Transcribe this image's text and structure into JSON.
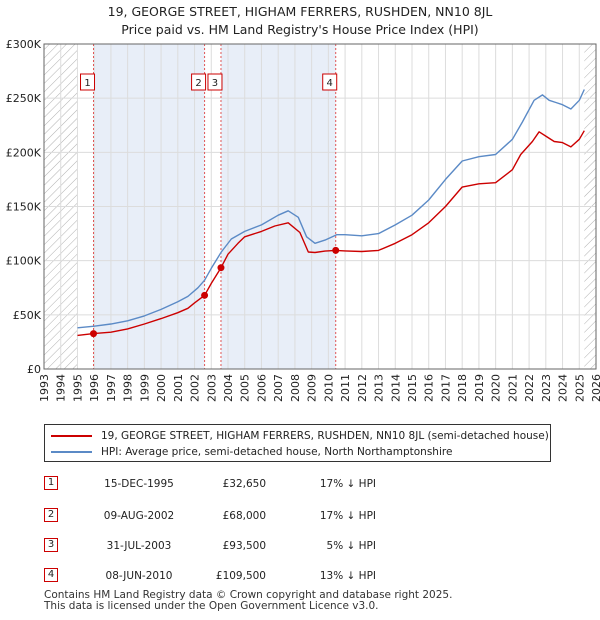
{
  "title_line1": "19, GEORGE STREET, HIGHAM FERRERS, RUSHDEN, NN10 8JL",
  "title_line2": "Price paid vs. HM Land Registry's House Price Index (HPI)",
  "chart_data": {
    "type": "line",
    "title": "19, GEORGE STREET, HIGHAM FERRERS, RUSHDEN, NN10 8JL — Price paid vs. HM Land Registry's House Price Index (HPI)",
    "xlim": [
      1993,
      2026
    ],
    "ylim": [
      0,
      300000
    ],
    "x_ticks": [
      1993,
      1994,
      1995,
      1996,
      1997,
      1998,
      1999,
      2000,
      2001,
      2002,
      2003,
      2004,
      2005,
      2006,
      2007,
      2008,
      2009,
      2010,
      2011,
      2012,
      2013,
      2014,
      2015,
      2016,
      2017,
      2018,
      2019,
      2020,
      2021,
      2022,
      2023,
      2024,
      2025,
      2026
    ],
    "y_ticks": [
      0,
      50000,
      100000,
      150000,
      200000,
      250000,
      300000
    ],
    "y_tick_labels": [
      "£0",
      "£50K",
      "£100K",
      "£150K",
      "£200K",
      "£250K",
      "£300K"
    ],
    "data_range": [
      1995.0,
      2025.3
    ],
    "grid": true,
    "colors": {
      "price": "#cc0000",
      "hpi": "#5b8ac6",
      "shade": "#e8eef8",
      "hatch": "#aaaaaa",
      "marker_line": "#e05555"
    },
    "series": [
      {
        "name": "19, GEORGE STREET, HIGHAM FERRERS, RUSHDEN, NN10 8JL (semi-detached house)",
        "key": "price",
        "x": [
          1995.0,
          1995.96,
          1997,
          1998,
          1999,
          2000,
          2001,
          2001.6,
          2002.0,
          2002.6,
          2003.0,
          2003.58,
          2004.0,
          2004.6,
          2005,
          2006,
          2006.8,
          2007.6,
          2008.3,
          2008.8,
          2009.2,
          2009.8,
          2010.44,
          2011,
          2012,
          2013,
          2014,
          2015,
          2016,
          2017,
          2018,
          2019,
          2020,
          2021,
          2021.5,
          2022.2,
          2022.6,
          2023,
          2023.5,
          2024,
          2024.5,
          2025,
          2025.3
        ],
        "y": [
          31000,
          32650,
          34000,
          37000,
          41500,
          46500,
          52000,
          56000,
          61000,
          68000,
          79000,
          93500,
          106000,
          116000,
          122000,
          127000,
          132000,
          135000,
          126000,
          108000,
          107500,
          108800,
          109500,
          109000,
          108500,
          109500,
          116000,
          124000,
          135000,
          150000,
          168000,
          171000,
          172000,
          184000,
          198000,
          210000,
          219000,
          215000,
          210000,
          209000,
          205000,
          212000,
          220000
        ]
      },
      {
        "name": "HPI: Average price, semi-detached house, North Northamptonshire",
        "key": "hpi",
        "x": [
          1995.0,
          1996,
          1997,
          1998,
          1999,
          2000,
          2001,
          2001.6,
          2002.2,
          2002.6,
          2003.0,
          2003.6,
          2004.2,
          2005,
          2006,
          2007,
          2007.6,
          2008.2,
          2008.7,
          2009.2,
          2009.8,
          2010.5,
          2011,
          2012,
          2013,
          2014,
          2015,
          2016,
          2017,
          2018,
          2019,
          2020,
          2021,
          2021.6,
          2022.3,
          2022.8,
          2023.2,
          2023.6,
          2024,
          2024.5,
          2025,
          2025.3
        ],
        "y": [
          38000,
          39500,
          41500,
          44500,
          49000,
          55000,
          62000,
          67000,
          75000,
          82000,
          93000,
          108000,
          120000,
          127000,
          133000,
          142000,
          146000,
          140000,
          122000,
          116000,
          119000,
          124000,
          124000,
          123000,
          125000,
          133000,
          142000,
          156000,
          175000,
          192000,
          196000,
          198000,
          212000,
          228000,
          248000,
          253000,
          248000,
          246000,
          244000,
          240000,
          248000,
          258000
        ]
      }
    ],
    "annotations": [
      {
        "label": "1",
        "x": 1995.96,
        "y": 32650,
        "date": "15-DEC-1995",
        "price": "£32,650",
        "hpi": "17% ↓ HPI"
      },
      {
        "label": "2",
        "x": 2002.6,
        "y": 68000,
        "date": "09-AUG-2002",
        "price": "£68,000",
        "hpi": "17% ↓ HPI"
      },
      {
        "label": "3",
        "x": 2003.58,
        "y": 93500,
        "date": "31-JUL-2003",
        "price": "£93,500",
        "hpi": "5% ↓ HPI"
      },
      {
        "label": "4",
        "x": 2010.44,
        "y": 109500,
        "date": "08-JUN-2010",
        "price": "£109,500",
        "hpi": "13% ↓ HPI"
      }
    ]
  },
  "legend": {
    "price_label": "19, GEORGE STREET, HIGHAM FERRERS, RUSHDEN, NN10 8JL (semi-detached house)",
    "hpi_label": "HPI: Average price, semi-detached house, North Northamptonshire"
  },
  "transactions": [
    {
      "num": "1",
      "date": "15-DEC-1995",
      "price": "£32,650",
      "hpi": "17% ↓ HPI"
    },
    {
      "num": "2",
      "date": "09-AUG-2002",
      "price": "£68,000",
      "hpi": "17% ↓ HPI"
    },
    {
      "num": "3",
      "date": "31-JUL-2003",
      "price": "£93,500",
      "hpi": "5% ↓ HPI"
    },
    {
      "num": "4",
      "date": "08-JUN-2010",
      "price": "£109,500",
      "hpi": "13% ↓ HPI"
    }
  ],
  "footer": {
    "line1": "Contains HM Land Registry data © Crown copyright and database right 2025.",
    "line2": "This data is licensed under the Open Government Licence v3.0."
  }
}
